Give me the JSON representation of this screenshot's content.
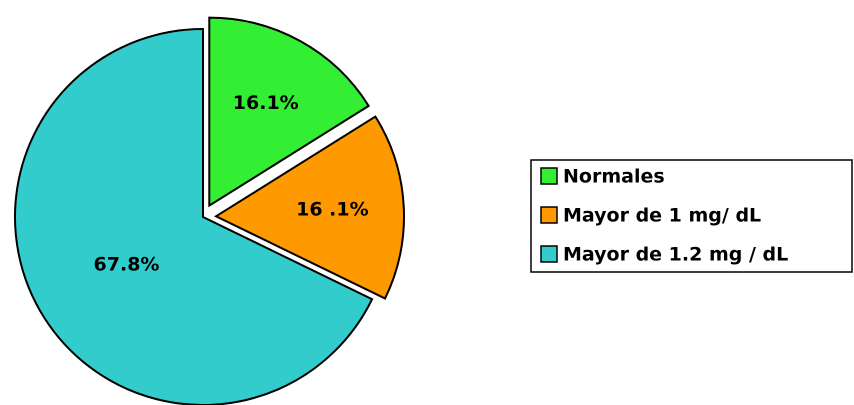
{
  "chart_data": {
    "type": "pie",
    "categories": [
      "Normales",
      "Mayor de 1 mg/ dL",
      "Mayor de 1.2 mg / dL"
    ],
    "values": [
      16.1,
      16.1,
      67.8
    ],
    "value_labels": [
      "16.1%",
      "16 .1%",
      "67.8%"
    ],
    "colors": [
      "#33ee33",
      "#ff9900",
      "#33cccc"
    ],
    "explode": [
      true,
      true,
      false
    ],
    "legend": "right"
  }
}
